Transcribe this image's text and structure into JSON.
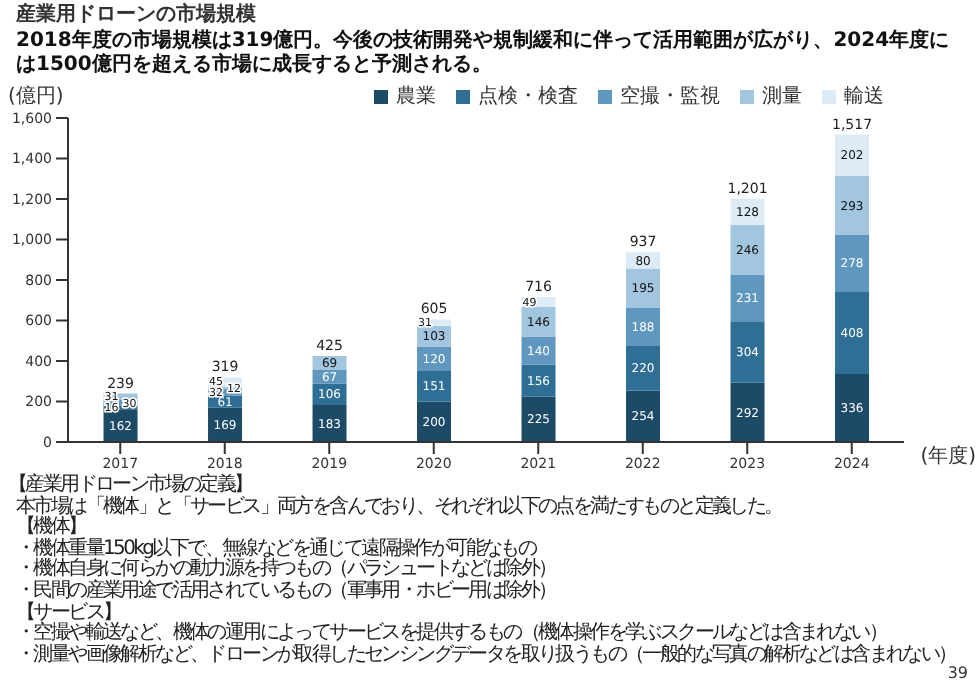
{
  "chart_data": {
    "type": "bar",
    "title": "産業用ドローンの市場規模",
    "subtitle": "2018年度の市場規模は319億円。今後の技術開発や規制緩和に伴って活用範囲が広がり、2024年度には1500億円を超える市場に成長すると予測される。",
    "ylabel": "(億円)",
    "xlabel": "(年度)",
    "categories": [
      "2017",
      "2018",
      "2019",
      "2020",
      "2021",
      "2022",
      "2023",
      "2024"
    ],
    "series": [
      {
        "name": "農業",
        "color": "#1d4a66",
        "values": [
          162,
          169,
          183,
          200,
          225,
          254,
          292,
          336
        ]
      },
      {
        "name": "点検・検査",
        "color": "#2f6f96",
        "values": [
          16,
          61,
          106,
          151,
          156,
          220,
          304,
          408
        ]
      },
      {
        "name": "空撮・監視",
        "color": "#5f97bf",
        "values": [
          30,
          32,
          67,
          120,
          140,
          188,
          231,
          278
        ]
      },
      {
        "name": "測量",
        "color": "#a2c6e0",
        "values": [
          31,
          12,
          69,
          103,
          146,
          195,
          246,
          293
        ]
      },
      {
        "name": "輸送",
        "color": "#dcebf6",
        "values": [
          null,
          45,
          null,
          31,
          49,
          80,
          128,
          202
        ]
      }
    ],
    "stacked": true,
    "data_labels": true,
    "totals": [
      "239",
      "319",
      "425",
      "605",
      "716",
      "937",
      "1,201",
      "1,517"
    ],
    "ylim": [
      0,
      1600
    ],
    "yticks": [
      0,
      200,
      400,
      600,
      800,
      {
        "value": 1000,
        "label": "1,000"
      },
      {
        "value": 1200,
        "label": "1,200"
      },
      {
        "value": 1400,
        "label": "1,400"
      },
      {
        "value": 1600,
        "label": "1,600"
      }
    ],
    "grid": false,
    "legend": "top right",
    "annotations": [
      "【産業用ドローン市場の定義】",
      "本市場は「機体」と「サービス」両方を含んでおり、それぞれ以下の点を満たすものと定義した。",
      "【機体】",
      "・機体重量150kg以下で、無線などを通じて遠隔操作が可能なもの",
      "・機体自身に何らかの動力源を持つもの（パラシュートなどは除外）",
      "・民間の産業用途で活用されているもの（軍事用・ホビー用は除外）",
      "【サービス】",
      "・空撮や輸送など、機体の運用によってサービスを提供するもの（機体操作を学ぶスクールなどは含まれない）",
      "・測量や画像解析など、ドローンが取得したセンシングデータを取り扱うもの（一般的な写真の解析などは含まれない）",
      "39"
    ]
  }
}
